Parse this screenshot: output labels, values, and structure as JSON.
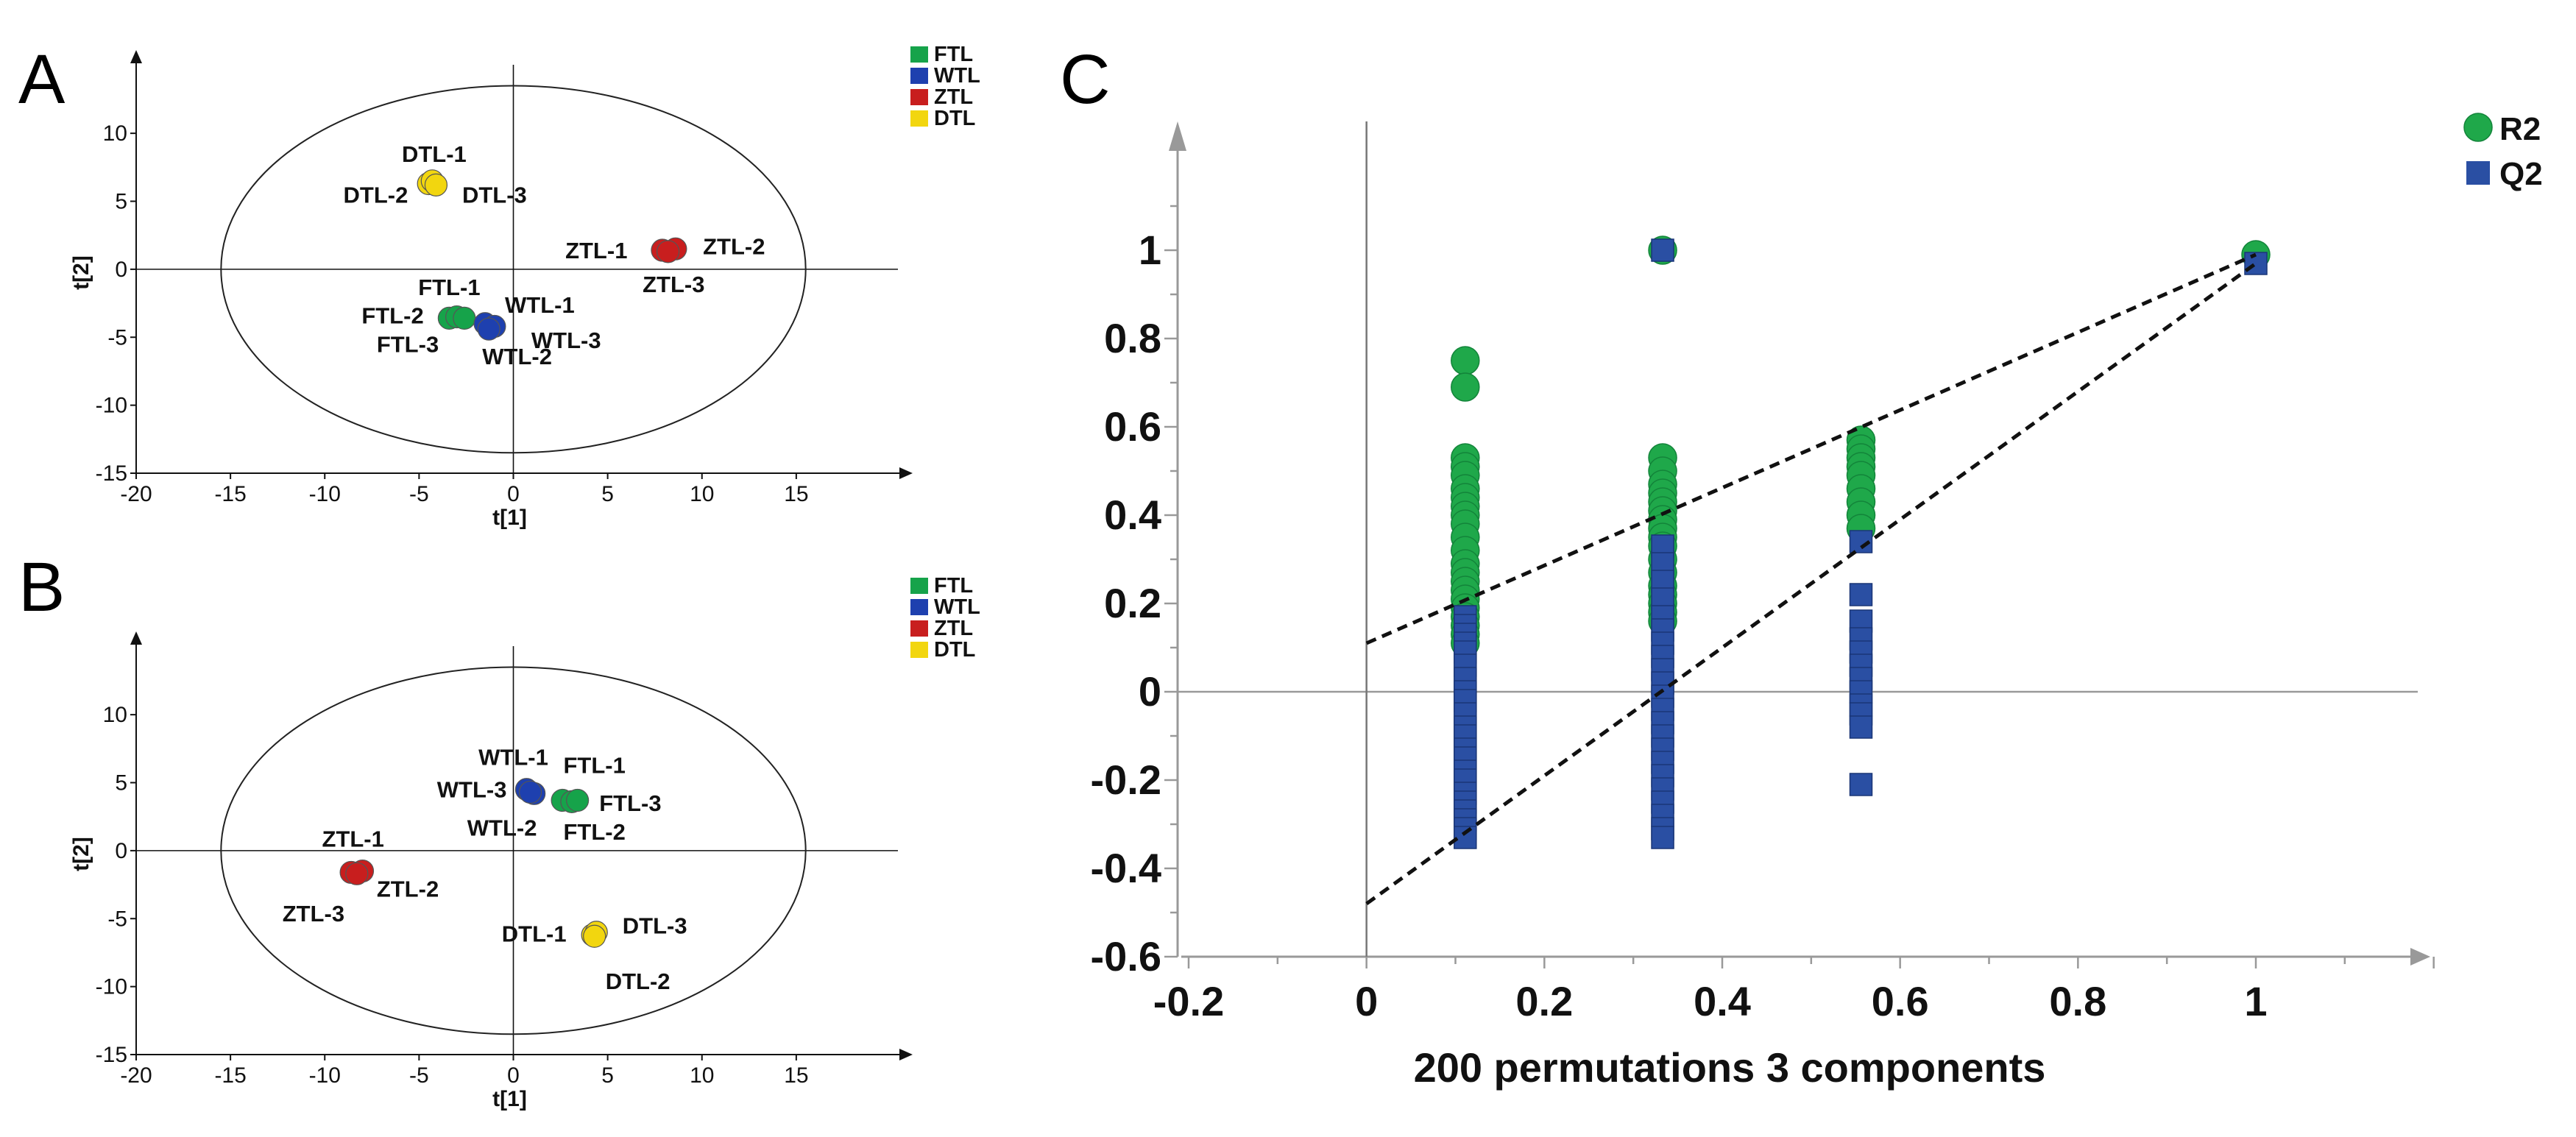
{
  "panels": {
    "A": {
      "label": "A",
      "xlabel": "t[1]",
      "ylabel": "t[2]",
      "xticks": [
        -20,
        -15,
        -10,
        -5,
        0,
        5,
        10,
        15
      ],
      "yticks": [
        -15,
        -10,
        -5,
        0,
        5,
        10
      ],
      "xlim": [
        -20,
        20
      ],
      "ylim": [
        -15,
        14.5
      ],
      "ellipse": {
        "rx": 15.5,
        "ry": 13.5
      },
      "legend": [
        {
          "label": "FTL",
          "color": "#16a34a"
        },
        {
          "label": "WTL",
          "color": "#1e40af"
        },
        {
          "label": "ZTL",
          "color": "#c81e1e"
        },
        {
          "label": "DTL",
          "color": "#f2d60f"
        }
      ],
      "groups": [
        {
          "group": "DTL",
          "points": [
            [
              -4.5,
              6.3
            ],
            [
              -4.3,
              6.5
            ],
            [
              -4.1,
              6.2
            ]
          ]
        },
        {
          "group": "ZTL",
          "points": [
            [
              7.9,
              1.4
            ],
            [
              8.6,
              1.5
            ],
            [
              8.2,
              1.3
            ]
          ]
        },
        {
          "group": "FTL",
          "points": [
            [
              -3.4,
              -3.6
            ],
            [
              -3.0,
              -3.5
            ],
            [
              -2.6,
              -3.6
            ]
          ]
        },
        {
          "group": "WTL",
          "points": [
            [
              -1.5,
              -4.0
            ],
            [
              -1.0,
              -4.2
            ],
            [
              -1.3,
              -4.4
            ]
          ]
        }
      ],
      "labels": [
        {
          "text": "DTL-1",
          "at": [
            -4.2,
            8.5
          ]
        },
        {
          "text": "DTL-2",
          "at": [
            -7.3,
            5.5
          ]
        },
        {
          "text": "DTL-3",
          "at": [
            -1.0,
            5.5
          ]
        },
        {
          "text": "ZTL-1",
          "at": [
            4.4,
            1.4
          ]
        },
        {
          "text": "ZTL-2",
          "at": [
            11.7,
            1.7
          ]
        },
        {
          "text": "ZTL-3",
          "at": [
            8.5,
            -1.1
          ]
        },
        {
          "text": "FTL-1",
          "at": [
            -3.4,
            -1.3
          ]
        },
        {
          "text": "FTL-2",
          "at": [
            -6.4,
            -3.4
          ]
        },
        {
          "text": "FTL-3",
          "at": [
            -5.6,
            -5.5
          ]
        },
        {
          "text": "WTL-1",
          "at": [
            1.4,
            -2.6
          ]
        },
        {
          "text": "WTL-3",
          "at": [
            2.8,
            -5.2
          ]
        },
        {
          "text": "WTL-2",
          "at": [
            0.2,
            -6.4
          ]
        }
      ]
    },
    "B": {
      "label": "B",
      "xlabel": "t[1]",
      "ylabel": "t[2]",
      "xticks": [
        -20,
        -15,
        -10,
        -5,
        0,
        5,
        10,
        15
      ],
      "yticks": [
        -15,
        -10,
        -5,
        0,
        5,
        10
      ],
      "xlim": [
        -20,
        20
      ],
      "ylim": [
        -15,
        14.5
      ],
      "ellipse": {
        "rx": 15.5,
        "ry": 13.5
      },
      "legend": [
        {
          "label": "FTL",
          "color": "#16a34a"
        },
        {
          "label": "WTL",
          "color": "#1e40af"
        },
        {
          "label": "ZTL",
          "color": "#c81e1e"
        },
        {
          "label": "DTL",
          "color": "#f2d60f"
        }
      ],
      "groups": [
        {
          "group": "WTL",
          "points": [
            [
              0.7,
              4.5
            ],
            [
              1.1,
              4.2
            ],
            [
              0.9,
              4.3
            ]
          ]
        },
        {
          "group": "FTL",
          "points": [
            [
              2.6,
              3.7
            ],
            [
              3.1,
              3.6
            ],
            [
              3.4,
              3.7
            ]
          ]
        },
        {
          "group": "ZTL",
          "points": [
            [
              -8.6,
              -1.6
            ],
            [
              -8.0,
              -1.5
            ],
            [
              -8.3,
              -1.7
            ]
          ]
        },
        {
          "group": "DTL",
          "points": [
            [
              4.2,
              -6.2
            ],
            [
              4.4,
              -6.0
            ],
            [
              4.3,
              -6.3
            ]
          ]
        }
      ],
      "labels": [
        {
          "text": "WTL-1",
          "at": [
            0.0,
            6.9
          ]
        },
        {
          "text": "FTL-1",
          "at": [
            4.3,
            6.3
          ]
        },
        {
          "text": "WTL-3",
          "at": [
            -2.2,
            4.5
          ]
        },
        {
          "text": "FTL-3",
          "at": [
            6.2,
            3.5
          ]
        },
        {
          "text": "WTL-2",
          "at": [
            -0.6,
            1.7
          ]
        },
        {
          "text": "FTL-2",
          "at": [
            4.3,
            1.4
          ]
        },
        {
          "text": "ZTL-1",
          "at": [
            -8.5,
            0.9
          ]
        },
        {
          "text": "ZTL-2",
          "at": [
            -5.6,
            -2.8
          ]
        },
        {
          "text": "ZTL-3",
          "at": [
            -10.6,
            -4.6
          ]
        },
        {
          "text": "DTL-1",
          "at": [
            1.1,
            -6.1
          ]
        },
        {
          "text": "DTL-3",
          "at": [
            7.5,
            -5.5
          ]
        },
        {
          "text": "DTL-2",
          "at": [
            6.6,
            -9.6
          ]
        }
      ]
    }
  },
  "chart_data": {
    "type": "scatter",
    "panel_label": "C",
    "title": "",
    "xlabel": "200 permutations 3 components",
    "ylabel": "",
    "xlim": [
      -0.2,
      1.2
    ],
    "ylim": [
      -0.6,
      1.2
    ],
    "xticks": [
      -0.2,
      0,
      0.2,
      0.4,
      0.6,
      0.8,
      1
    ],
    "xtick_labels": [
      "-0.2",
      "0",
      "0.2",
      "0.4",
      "0.6",
      "0.8",
      "1"
    ],
    "yticks": [
      -0.6,
      -0.4,
      -0.2,
      0,
      0.2,
      0.4,
      0.6,
      0.8,
      1
    ],
    "ytick_labels": [
      "-0.6",
      "-0.4",
      "-0.2",
      "0",
      "0.2",
      "0.4",
      "0.6",
      "0.8",
      "1"
    ],
    "legend": [
      {
        "label": "R2",
        "marker": "circle",
        "color": "#1fa84a"
      },
      {
        "label": "Q2",
        "marker": "square",
        "color": "#2a4fa3"
      }
    ],
    "series": [
      {
        "name": "R2",
        "marker": "circle",
        "color": "#1fa84a",
        "points": [
          [
            0.111,
            0.75
          ],
          [
            0.111,
            0.69
          ],
          [
            0.111,
            0.53
          ],
          [
            0.111,
            0.51
          ],
          [
            0.111,
            0.49
          ],
          [
            0.111,
            0.46
          ],
          [
            0.111,
            0.44
          ],
          [
            0.111,
            0.42
          ],
          [
            0.111,
            0.4
          ],
          [
            0.111,
            0.38
          ],
          [
            0.111,
            0.35
          ],
          [
            0.111,
            0.32
          ],
          [
            0.111,
            0.29
          ],
          [
            0.111,
            0.27
          ],
          [
            0.111,
            0.25
          ],
          [
            0.111,
            0.23
          ],
          [
            0.111,
            0.21
          ],
          [
            0.111,
            0.19
          ],
          [
            0.111,
            0.17
          ],
          [
            0.111,
            0.15
          ],
          [
            0.111,
            0.13
          ],
          [
            0.111,
            0.11
          ],
          [
            0.333,
            0.53
          ],
          [
            0.333,
            0.5
          ],
          [
            0.333,
            0.47
          ],
          [
            0.333,
            0.45
          ],
          [
            0.333,
            0.43
          ],
          [
            0.333,
            0.41
          ],
          [
            0.333,
            0.39
          ],
          [
            0.333,
            0.37
          ],
          [
            0.333,
            0.35
          ],
          [
            0.333,
            0.33
          ],
          [
            0.333,
            0.3
          ],
          [
            0.333,
            0.27
          ],
          [
            0.333,
            0.24
          ],
          [
            0.333,
            0.22
          ],
          [
            0.333,
            0.2
          ],
          [
            0.333,
            0.18
          ],
          [
            0.333,
            0.16
          ],
          [
            0.333,
            1.0
          ],
          [
            0.556,
            0.57
          ],
          [
            0.556,
            0.55
          ],
          [
            0.556,
            0.53
          ],
          [
            0.556,
            0.51
          ],
          [
            0.556,
            0.49
          ],
          [
            0.556,
            0.46
          ],
          [
            0.556,
            0.43
          ],
          [
            0.556,
            0.4
          ],
          [
            0.556,
            0.37
          ],
          [
            1,
            0.99
          ]
        ]
      },
      {
        "name": "Q2",
        "marker": "square",
        "color": "#2a4fa3",
        "points": [
          [
            0.111,
            0.17
          ],
          [
            0.111,
            0.15
          ],
          [
            0.111,
            0.13
          ],
          [
            0.111,
            0.11
          ],
          [
            0.111,
            0.09
          ],
          [
            0.111,
            0.06
          ],
          [
            0.111,
            0.03
          ],
          [
            0.111,
            0.0
          ],
          [
            0.111,
            -0.02
          ],
          [
            0.111,
            -0.05
          ],
          [
            0.111,
            -0.08
          ],
          [
            0.111,
            -0.1
          ],
          [
            0.111,
            -0.13
          ],
          [
            0.111,
            -0.15
          ],
          [
            0.111,
            -0.18
          ],
          [
            0.111,
            -0.2
          ],
          [
            0.111,
            -0.23
          ],
          [
            0.111,
            -0.25
          ],
          [
            0.111,
            -0.27
          ],
          [
            0.111,
            -0.29
          ],
          [
            0.111,
            -0.31
          ],
          [
            0.111,
            -0.33
          ],
          [
            0.333,
            1.0
          ],
          [
            0.333,
            0.33
          ],
          [
            0.333,
            0.29
          ],
          [
            0.333,
            0.25
          ],
          [
            0.333,
            0.21
          ],
          [
            0.333,
            0.17
          ],
          [
            0.333,
            0.14
          ],
          [
            0.333,
            0.11
          ],
          [
            0.333,
            0.08
          ],
          [
            0.333,
            0.05
          ],
          [
            0.333,
            0.02
          ],
          [
            0.333,
            -0.01
          ],
          [
            0.333,
            -0.04
          ],
          [
            0.333,
            -0.07
          ],
          [
            0.333,
            -0.1
          ],
          [
            0.333,
            -0.13
          ],
          [
            0.333,
            -0.16
          ],
          [
            0.333,
            -0.19
          ],
          [
            0.333,
            -0.22
          ],
          [
            0.333,
            -0.25
          ],
          [
            0.333,
            -0.28
          ],
          [
            0.333,
            -0.31
          ],
          [
            0.333,
            -0.33
          ],
          [
            0.556,
            0.34
          ],
          [
            0.556,
            0.22
          ],
          [
            0.556,
            0.16
          ],
          [
            0.556,
            0.12
          ],
          [
            0.556,
            0.09
          ],
          [
            0.556,
            0.06
          ],
          [
            0.556,
            0.03
          ],
          [
            0.556,
            0.0
          ],
          [
            0.556,
            -0.03
          ],
          [
            0.556,
            -0.05
          ],
          [
            0.556,
            -0.08
          ],
          [
            0.556,
            -0.21
          ],
          [
            1,
            0.97
          ]
        ]
      }
    ],
    "trend_lines": [
      {
        "name": "R2 regression",
        "from": [
          0,
          0.11
        ],
        "to": [
          1,
          0.99
        ]
      },
      {
        "name": "Q2 regression",
        "from": [
          0,
          -0.48
        ],
        "to": [
          1,
          0.97
        ]
      }
    ]
  }
}
